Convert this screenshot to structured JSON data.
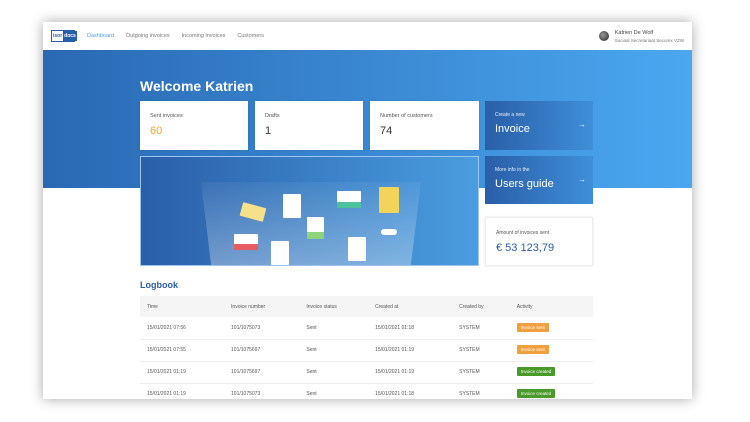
{
  "nav": {
    "logo_left": "isor",
    "logo_right": "docs",
    "items": [
      {
        "label": "Dashboard",
        "active": true
      },
      {
        "label": "Outgoing invoices"
      },
      {
        "label": "Incoming invoices"
      },
      {
        "label": "Customers"
      }
    ],
    "user_name": "Katrien De Wolf",
    "user_org": "Sociaal Secretariaat Securex VZW"
  },
  "welcome": "Welcome Katrien",
  "stats": [
    {
      "label": "Sent invoices",
      "value": "60",
      "color": "#f0a830"
    },
    {
      "label": "Drafts",
      "value": "1",
      "color": "#333333"
    },
    {
      "label": "Number of customers",
      "value": "74",
      "color": "#333333"
    }
  ],
  "cta_invoice": {
    "label": "Create a new",
    "title": "Invoice"
  },
  "cta_guide": {
    "label": "More info in the",
    "title": "Users guide"
  },
  "amount": {
    "label": "Amount of invoices sent",
    "value": "€ 53 123,79"
  },
  "logbook": {
    "title": "Logbook",
    "columns": [
      "Time",
      "Invoice number",
      "Invoice status",
      "Created at",
      "Created by",
      "Activity"
    ],
    "rows": [
      {
        "time": "15/01/2021 07:56",
        "number": "101/1075073",
        "status": "Sent",
        "created": "15/01/2021 01:18",
        "by": "SYSTEM",
        "activity": "Invoice sent",
        "color": "#f0a040"
      },
      {
        "time": "15/01/2021 07:55",
        "number": "101/1075697",
        "status": "Sent",
        "created": "15/01/2021 01:19",
        "by": "SYSTEM",
        "activity": "Invoice sent",
        "color": "#f0a040"
      },
      {
        "time": "15/01/2021 01:19",
        "number": "101/1075697",
        "status": "Sent",
        "created": "15/01/2021 01:19",
        "by": "SYSTEM",
        "activity": "Invoice created",
        "color": "#4a9a2a"
      },
      {
        "time": "15/01/2021 01:19",
        "number": "101/1075073",
        "status": "Sent",
        "created": "15/01/2021 01:18",
        "by": "SYSTEM",
        "activity": "Invoice created",
        "color": "#4a9a2a"
      }
    ]
  }
}
